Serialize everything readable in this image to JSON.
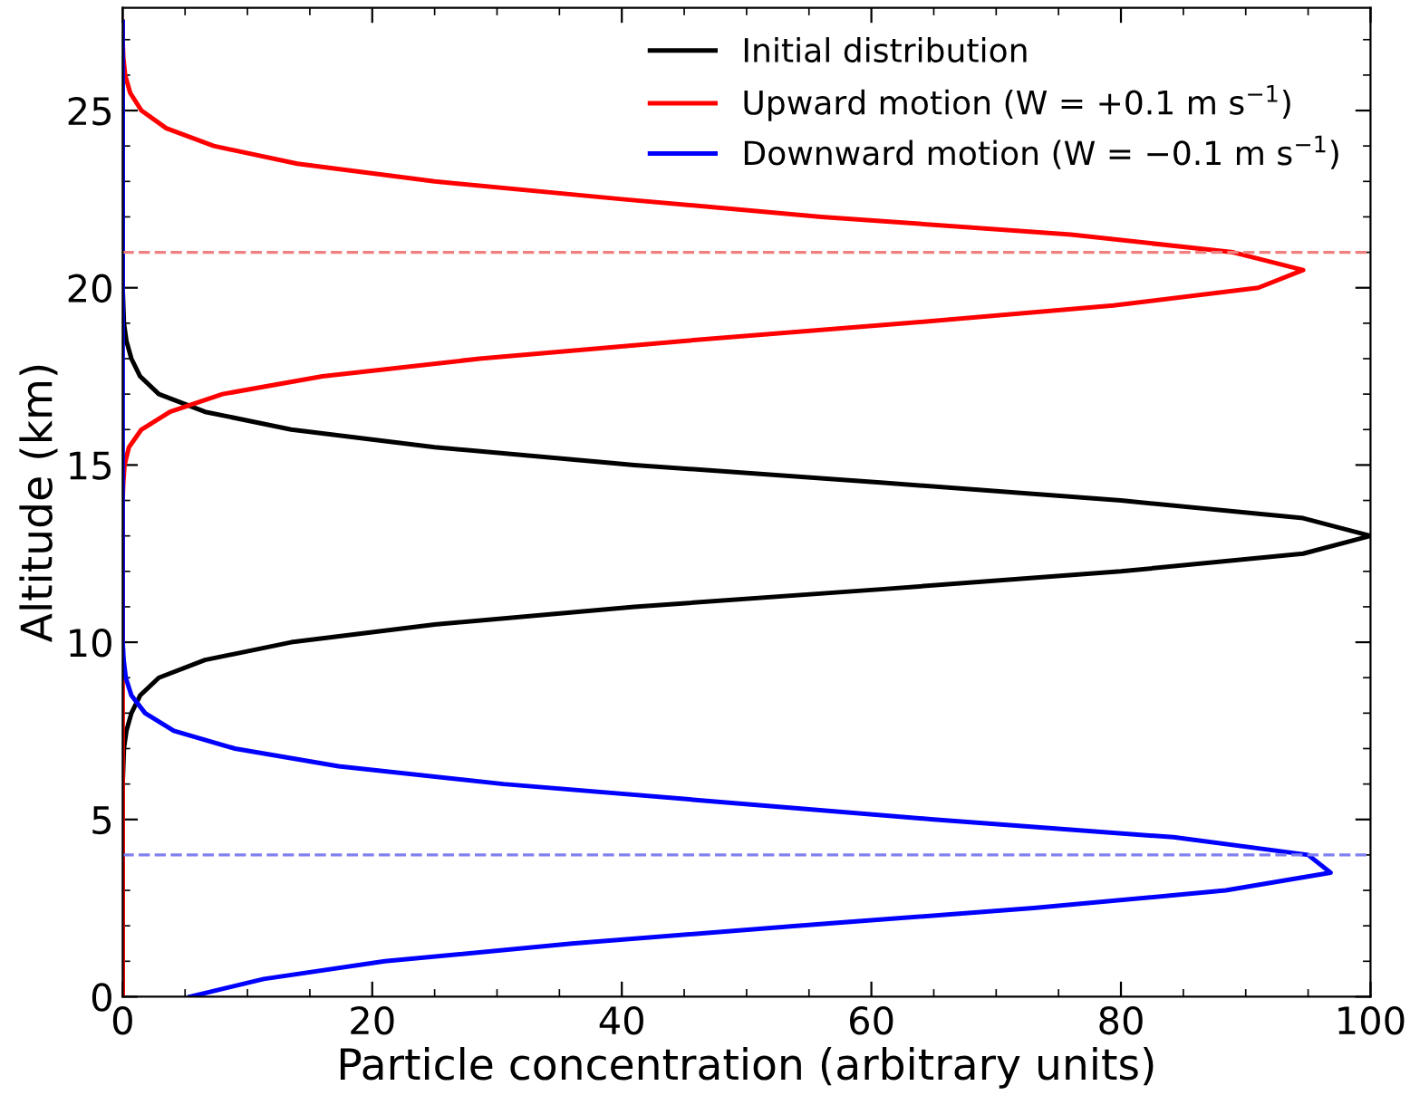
{
  "chart_data": {
    "type": "line",
    "orientation": "horizontal",
    "xlabel": "Particle concentration (arbitrary units)",
    "ylabel": "Altitude (km)",
    "x": [
      0,
      0.5,
      1,
      1.5,
      2,
      2.5,
      3,
      3.5,
      4,
      4.5,
      5,
      5.5,
      6,
      6.5,
      7,
      7.5,
      8,
      8.5,
      9,
      9.5,
      10,
      10.5,
      11,
      11.5,
      12,
      12.5,
      13,
      13.5,
      14,
      14.5,
      15,
      15.5,
      16,
      16.5,
      17,
      17.5,
      18,
      18.5,
      19,
      19.5,
      20,
      20.5,
      21,
      21.5,
      22,
      22.5,
      23,
      23.5,
      24,
      24.5,
      25,
      25.5,
      26,
      26.5,
      27,
      27.5
    ],
    "series": [
      {
        "name": "Initial distribution",
        "color": "#000000",
        "values": [
          0,
          0,
          0,
          0,
          0,
          0,
          0,
          0,
          0,
          0,
          0,
          0,
          0,
          0.05,
          0.1,
          0.3,
          0.7,
          1.4,
          2.9,
          6.6,
          13.5,
          25,
          41,
          61,
          80,
          94.6,
          100,
          94.6,
          80,
          61,
          41,
          25,
          13.5,
          6.6,
          2.9,
          1.4,
          0.7,
          0.3,
          0.1,
          0.05,
          0,
          0,
          0,
          0,
          0,
          0,
          0,
          0,
          0,
          0,
          0,
          0,
          0,
          0,
          0,
          0
        ]
      },
      {
        "name": "Upward motion (W = +0.1 m s$^{−1}$)",
        "color": "#ff0000",
        "values": [
          0,
          0,
          0,
          0,
          0,
          0,
          0,
          0,
          0,
          0,
          0,
          0,
          0,
          0,
          0,
          0,
          0,
          0,
          0,
          0,
          0,
          0,
          0,
          0,
          0,
          0,
          0,
          0,
          0,
          0.05,
          0.15,
          0.5,
          1.5,
          3.8,
          8,
          16,
          28.6,
          45,
          62.8,
          79.4,
          91,
          94.6,
          89,
          76,
          56,
          40,
          25,
          14,
          7.3,
          3.5,
          1.5,
          0.6,
          0.2,
          0.05,
          0,
          0
        ]
      },
      {
        "name": "Downward motion (W = −0.1 m s$^{−1}$)",
        "color": "#0000ff",
        "values": [
          5.4,
          11.3,
          21,
          36,
          54,
          73,
          88.4,
          96.8,
          95,
          84.2,
          65,
          47.7,
          30.5,
          17.3,
          9,
          4.1,
          1.8,
          0.7,
          0.25,
          0.08,
          0,
          0,
          0,
          0,
          0,
          0,
          0,
          0,
          0,
          0,
          0,
          0,
          0,
          0,
          0,
          0,
          0,
          0,
          0,
          0,
          0,
          0,
          0,
          0,
          0,
          0,
          0,
          0,
          0,
          0,
          0,
          0,
          0,
          0,
          0,
          0
        ]
      }
    ],
    "ref_lines": [
      {
        "axis": "y",
        "value": 21,
        "color": "#f08080",
        "line_style": "dashed"
      },
      {
        "axis": "y",
        "value": 4,
        "color": "#8080f0",
        "line_style": "dashed"
      }
    ],
    "xlim": [
      0,
      100
    ],
    "ylim": [
      0,
      27.9
    ],
    "xticks": [
      0,
      {
        "value": 5,
        "label": null
      },
      {
        "value": 10,
        "label": null
      },
      {
        "value": 15,
        "label": null
      },
      20,
      {
        "value": 25,
        "label": null
      },
      {
        "value": 30,
        "label": null
      },
      {
        "value": 35,
        "label": null
      },
      40,
      {
        "value": 45,
        "label": null
      },
      {
        "value": 50,
        "label": null
      },
      {
        "value": 55,
        "label": null
      },
      60,
      {
        "value": 65,
        "label": null
      },
      {
        "value": 70,
        "label": null
      },
      {
        "value": 75,
        "label": null
      },
      80,
      {
        "value": 85,
        "label": null
      },
      {
        "value": 90,
        "label": null
      },
      {
        "value": 95,
        "label": null
      },
      100
    ],
    "yticks": [
      0,
      {
        "value": 1,
        "label": null
      },
      {
        "value": 2,
        "label": null
      },
      {
        "value": 3,
        "label": null
      },
      {
        "value": 4,
        "label": null
      },
      5,
      {
        "value": 6,
        "label": null
      },
      {
        "value": 7,
        "label": null
      },
      {
        "value": 8,
        "label": null
      },
      {
        "value": 9,
        "label": null
      },
      10,
      {
        "value": 11,
        "label": null
      },
      {
        "value": 12,
        "label": null
      },
      {
        "value": 13,
        "label": null
      },
      {
        "value": 14,
        "label": null
      },
      15,
      {
        "value": 16,
        "label": null
      },
      {
        "value": 17,
        "label": null
      },
      {
        "value": 18,
        "label": null
      },
      {
        "value": 19,
        "label": null
      },
      20,
      {
        "value": 21,
        "label": null
      },
      {
        "value": 22,
        "label": null
      },
      {
        "value": 23,
        "label": null
      },
      {
        "value": 24,
        "label": null
      },
      25,
      {
        "value": 26,
        "label": null
      },
      {
        "value": 27,
        "label": null
      }
    ],
    "grid": false,
    "legend": "top right",
    "marker": "none",
    "line_style": "solid"
  }
}
